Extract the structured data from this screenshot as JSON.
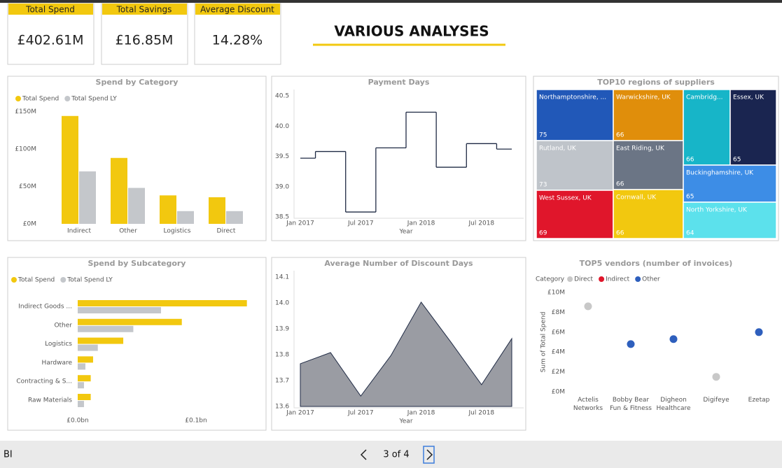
{
  "header": {
    "kpis": [
      {
        "label": "Total Spend",
        "value": "£402.61M"
      },
      {
        "label": "Total Savings",
        "value": "£16.85M"
      },
      {
        "label": "Average Discount",
        "value": "14.28%"
      }
    ],
    "title": "VARIOUS ANALYSES"
  },
  "chart_data": [
    {
      "type": "bar",
      "title": "Spend by Category",
      "categories": [
        "Indirect",
        "Other",
        "Logistics",
        "Direct"
      ],
      "series": [
        {
          "name": "Total Spend",
          "color": "#f2c80f",
          "values": [
            144,
            88,
            38,
            35.5
          ]
        },
        {
          "name": "Total Spend LY",
          "color": "#c4c7cb",
          "values": [
            70,
            48,
            17,
            17
          ]
        }
      ],
      "ylim": [
        0,
        155
      ],
      "yticks": [
        {
          "value": 0,
          "label": "£0M"
        },
        {
          "value": 50,
          "label": "£50M"
        },
        {
          "value": 100,
          "label": "£100M"
        },
        {
          "value": 150,
          "label": "£150M"
        }
      ],
      "legend": "top-left"
    },
    {
      "type": "step",
      "title": "Payment Days",
      "x": [
        "2017-01",
        "2017-04",
        "2017-07",
        "2017-10",
        "2018-01",
        "2018-04",
        "2018-07",
        "2018-10"
      ],
      "values": [
        39.47,
        39.58,
        38.58,
        39.64,
        40.23,
        39.32,
        39.71,
        39.62
      ],
      "color": "#1f2a44",
      "xlim": [
        "2017-01",
        "2018-10"
      ],
      "xticks": [
        {
          "value": "2017-01",
          "label": "Jan 2017"
        },
        {
          "value": "2017-07",
          "label": "Jul 2017"
        },
        {
          "value": "2018-01",
          "label": "Jan 2018"
        },
        {
          "value": "2018-07",
          "label": "Jul 2018"
        }
      ],
      "ylim": [
        38.5,
        40.5
      ],
      "yticks": [
        38.5,
        {
          "value": 39,
          "label": "39.0"
        },
        39.5,
        {
          "value": 40,
          "label": "40.0"
        },
        40.5
      ],
      "xlabel": "Year"
    },
    {
      "type": "treemap",
      "title": "TOP10 regions of suppliers",
      "categories": [
        "Northamptonshire, ...",
        "Warwickshire, UK",
        "Cambridg...",
        "Essex, UK",
        "Rutland, UK",
        "East Riding, UK",
        "Buckinghamshire, UK",
        "West Sussex, UK",
        "Cornwall, UK",
        "North Yorkshire, UK"
      ],
      "values": [
        75,
        66,
        66,
        65,
        73,
        66,
        65,
        69,
        66,
        64
      ],
      "colors": [
        "#2158b8",
        "#e08e0b",
        "#17b5c8",
        "#1a2550",
        "#bfc4ca",
        "#6b7585",
        "#3d8de6",
        "#e0162b",
        "#f2c80f",
        "#5ce1ec"
      ]
    },
    {
      "type": "hbar",
      "title": "Spend by Subcategory",
      "categories": [
        "Indirect Goods ...",
        "Other",
        "Logistics",
        "Hardware",
        "Contracting & S...",
        "Raw Materials"
      ],
      "series": [
        {
          "name": "Total Spend",
          "color": "#f2c80f",
          "values": [
            0.143,
            0.088,
            0.0385,
            0.013,
            0.011,
            0.011
          ]
        },
        {
          "name": "Total Spend LY",
          "color": "#c4c7cb",
          "values": [
            0.0704,
            0.047,
            0.017,
            0.0065,
            0.0053,
            0.0053
          ]
        }
      ],
      "xlim": [
        0,
        0.15
      ],
      "xticks": [
        {
          "value": 0,
          "label": "£0.0bn"
        },
        {
          "value": 0.1,
          "label": "£0.1bn"
        }
      ],
      "legend": "top-left"
    },
    {
      "type": "area",
      "title": "Average Number of Discount Days",
      "x": [
        "2017-01",
        "2017-04",
        "2017-07",
        "2017-10",
        "2018-01",
        "2018-04",
        "2018-07",
        "2018-10"
      ],
      "values": [
        13.765,
        13.808,
        13.64,
        13.797,
        14.003,
        13.846,
        13.684,
        13.862
      ],
      "color": "#9a9ca3",
      "xlim": [
        "2017-01",
        "2018-10"
      ],
      "xticks": [
        {
          "value": "2017-01",
          "label": "Jan 2017"
        },
        {
          "value": "2017-07",
          "label": "Jul 2017"
        },
        {
          "value": "2018-01",
          "label": "Jan 2018"
        },
        {
          "value": "2018-07",
          "label": "Jul 2018"
        }
      ],
      "ylim": [
        13.6,
        14.1
      ],
      "yticks": [
        13.6,
        13.7,
        13.8,
        13.9,
        {
          "value": 14,
          "label": "14.0"
        },
        14.1
      ],
      "xlabel": "Year"
    },
    {
      "type": "scatter",
      "title": "TOP5 vendors (number of invoices)",
      "legend_title": "Category",
      "ylabel": "Sum of Total Spend",
      "categories": [
        "Actelis Networks",
        "Bobby Bear Fun & Fitness",
        "Digheon Healthcare",
        "Digifeye",
        "Ezetap"
      ],
      "series": [
        {
          "name": "Direct",
          "color": "#c8c8c8",
          "values": [
            8.6,
            null,
            null,
            1.5,
            null
          ]
        },
        {
          "name": "Indirect",
          "color": "#e0162b",
          "values": [
            null,
            null,
            null,
            null,
            null
          ]
        },
        {
          "name": "Other",
          "color": "#2e5fbd",
          "values": [
            null,
            4.8,
            5.3,
            null,
            6.0
          ]
        }
      ],
      "ylim": [
        0,
        10
      ],
      "yticks": [
        {
          "value": 0,
          "label": "£0M"
        },
        {
          "value": 2,
          "label": "£2M"
        },
        {
          "value": 4,
          "label": "£4M"
        },
        {
          "value": 6,
          "label": "£6M"
        },
        {
          "value": 8,
          "label": "£8M"
        },
        {
          "value": 10,
          "label": "£10M"
        }
      ],
      "legend": "top-left"
    }
  ],
  "footer": {
    "app": "BI",
    "page": "3 of 4"
  }
}
